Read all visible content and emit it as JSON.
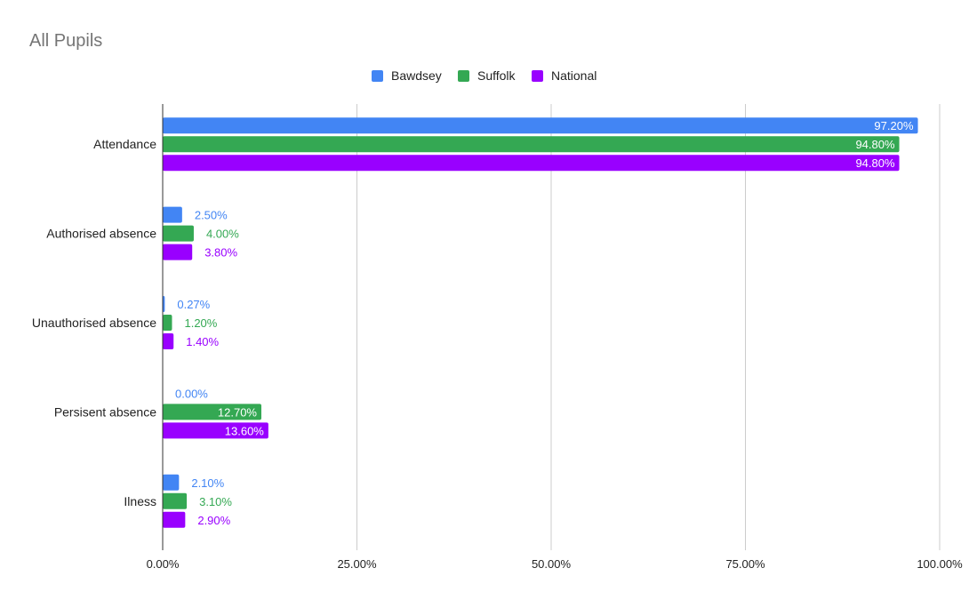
{
  "chart_data": {
    "type": "bar",
    "orientation": "horizontal",
    "title": "All Pupils",
    "categories": [
      "Attendance",
      "Authorised absence",
      "Unauthorised absence",
      "Persisent absence",
      "Ilness"
    ],
    "series": [
      {
        "name": "Bawdsey",
        "color": "#4285F4",
        "values": [
          97.2,
          2.5,
          0.27,
          0.0,
          2.1
        ],
        "labels": [
          "97.20%",
          "2.50%",
          "0.27%",
          "0.00%",
          "2.10%"
        ]
      },
      {
        "name": "Suffolk",
        "color": "#34A853",
        "values": [
          94.8,
          4.0,
          1.2,
          12.7,
          3.1
        ],
        "labels": [
          "94.80%",
          "4.00%",
          "1.20%",
          "12.70%",
          "3.10%"
        ]
      },
      {
        "name": "National",
        "color": "#9900FF",
        "values": [
          94.8,
          3.8,
          1.4,
          13.6,
          2.9
        ],
        "labels": [
          "94.80%",
          "3.80%",
          "1.40%",
          "13.60%",
          "2.90%"
        ]
      }
    ],
    "xlim": [
      0,
      100
    ],
    "xticks": [
      "0.00%",
      "25.00%",
      "50.00%",
      "75.00%",
      "100.00%"
    ],
    "xtick_values": [
      0,
      25,
      50,
      75,
      100
    ],
    "grid": true,
    "legend": "top-center"
  }
}
